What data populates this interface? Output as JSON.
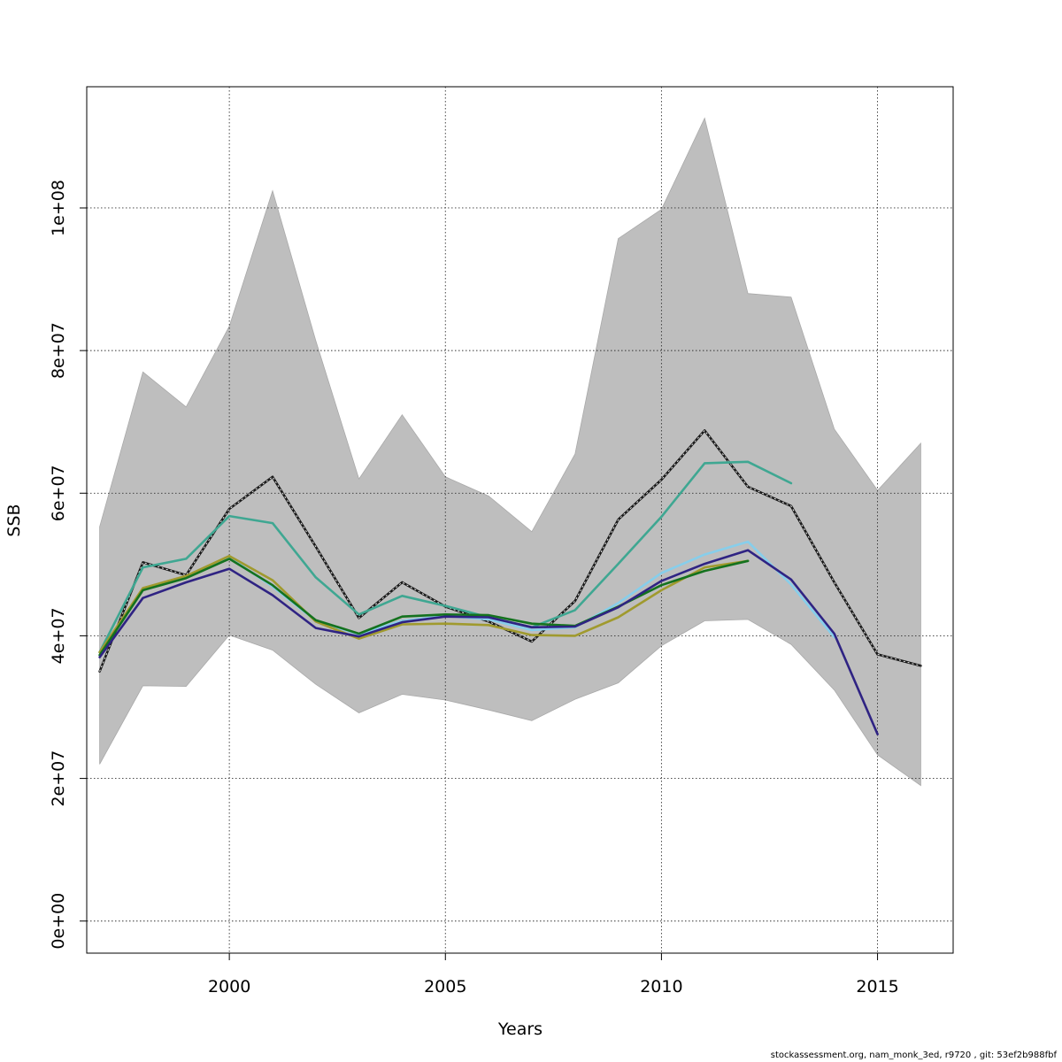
{
  "chart_data": {
    "type": "line",
    "xlabel": "Years",
    "ylabel": "SSB",
    "xlim": [
      1996.7,
      2016.75
    ],
    "ylim": [
      -4500000,
      117000000
    ],
    "x_ticks": [
      2000,
      2005,
      2010,
      2015
    ],
    "y_ticks": [
      0,
      20000000,
      40000000,
      60000000,
      80000000,
      100000000
    ],
    "x_tick_labels": [
      "2000",
      "2005",
      "2010",
      "2015"
    ],
    "y_tick_labels": [
      "0e+00",
      "2e+07",
      "4e+07",
      "6e+07",
      "8e+07",
      "1e+08"
    ],
    "grid": true,
    "confidence_band": {
      "color": "#bebebe",
      "x": [
        1997,
        1998,
        1999,
        2000,
        2001,
        2002,
        2003,
        2004,
        2005,
        2006,
        2007,
        2008,
        2009,
        2010,
        2011,
        2012,
        2013,
        2014,
        2015,
        2016
      ],
      "lower": [
        22000000,
        33000000,
        32900000,
        40100000,
        38000000,
        33200000,
        29200000,
        31800000,
        31000000,
        29600000,
        28100000,
        31100000,
        33400000,
        38600000,
        42100000,
        42300000,
        38800000,
        32400000,
        23300000,
        19000000
      ],
      "upper": [
        55300000,
        77000000,
        72100000,
        83400000,
        102400000,
        81400000,
        62000000,
        71000000,
        62300000,
        59600000,
        54600000,
        65500000,
        95700000,
        99800000,
        112600000,
        88000000,
        87500000,
        69000000,
        60400000,
        67000000
      ]
    },
    "series": [
      {
        "color": "#1a1a1a",
        "dashed": true,
        "x": [
          1997,
          1998,
          1999,
          2000,
          2001,
          2002,
          2003,
          2004,
          2005,
          2006,
          2007,
          2008,
          2009,
          2010,
          2011,
          2012,
          2013,
          2014,
          2015,
          2016
        ],
        "values": [
          35000000,
          50300000,
          48500000,
          57800000,
          62300000,
          52500000,
          42500000,
          47500000,
          44100000,
          42000000,
          39200000,
          44900000,
          56300000,
          61900000,
          68800000,
          60900000,
          58200000,
          47500000,
          37400000,
          35800000
        ]
      },
      {
        "color": "#3fa792",
        "dashed": false,
        "x": [
          1997,
          1998,
          1999,
          2000,
          2001,
          2002,
          2003,
          2004,
          2005,
          2006,
          2007,
          2008,
          2009,
          2010,
          2011,
          2012,
          2013
        ],
        "values": [
          37700000,
          49600000,
          50800000,
          56800000,
          55800000,
          48200000,
          43000000,
          45600000,
          44200000,
          42600000,
          41200000,
          43600000,
          50100000,
          56700000,
          64200000,
          64400000,
          61400000
        ]
      },
      {
        "color": "#87ceeb",
        "dashed": false,
        "x": [
          1997,
          1998,
          1999,
          2000,
          2001,
          2002,
          2003,
          2004,
          2005,
          2006,
          2007,
          2008,
          2009,
          2010,
          2011,
          2012,
          2013,
          2014
        ],
        "values": [
          37300000,
          46600000,
          48100000,
          51000000,
          46900000,
          42100000,
          40200000,
          42100000,
          42800000,
          42300000,
          40800000,
          41200000,
          44600000,
          48800000,
          51400000,
          53200000,
          47200000,
          39800000
        ]
      },
      {
        "color": "#a09a2e",
        "dashed": false,
        "x": [
          1997,
          1998,
          1999,
          2000,
          2001,
          2002,
          2003,
          2004,
          2005,
          2006,
          2007,
          2008,
          2009,
          2010,
          2011,
          2012
        ],
        "values": [
          37700000,
          46700000,
          48400000,
          51200000,
          47800000,
          42000000,
          39600000,
          41600000,
          41700000,
          41500000,
          40100000,
          40000000,
          42600000,
          46400000,
          49600000,
          50500000
        ]
      },
      {
        "color": "#14721e",
        "dashed": false,
        "x": [
          1997,
          1998,
          1999,
          2000,
          2001,
          2002,
          2003,
          2004,
          2005,
          2006,
          2007,
          2008,
          2009,
          2010,
          2011,
          2012
        ],
        "values": [
          37300000,
          46400000,
          48100000,
          50800000,
          47100000,
          42200000,
          40300000,
          42700000,
          43000000,
          42900000,
          41700000,
          41400000,
          44100000,
          47100000,
          49100000,
          50500000
        ]
      },
      {
        "color": "#2f2383",
        "dashed": false,
        "x": [
          1997,
          1998,
          1999,
          2000,
          2001,
          2002,
          2003,
          2004,
          2005,
          2006,
          2007,
          2008,
          2009,
          2010,
          2011,
          2012,
          2013,
          2014,
          2015
        ],
        "values": [
          37000000,
          45300000,
          47500000,
          49400000,
          45700000,
          41100000,
          39900000,
          41900000,
          42700000,
          42600000,
          41200000,
          41300000,
          44000000,
          47700000,
          50100000,
          52000000,
          47900000,
          40300000,
          26200000
        ]
      }
    ]
  },
  "footer": "stockassessment.org, nam_monk_3ed, r9720 , git: 53ef2b988fbf"
}
